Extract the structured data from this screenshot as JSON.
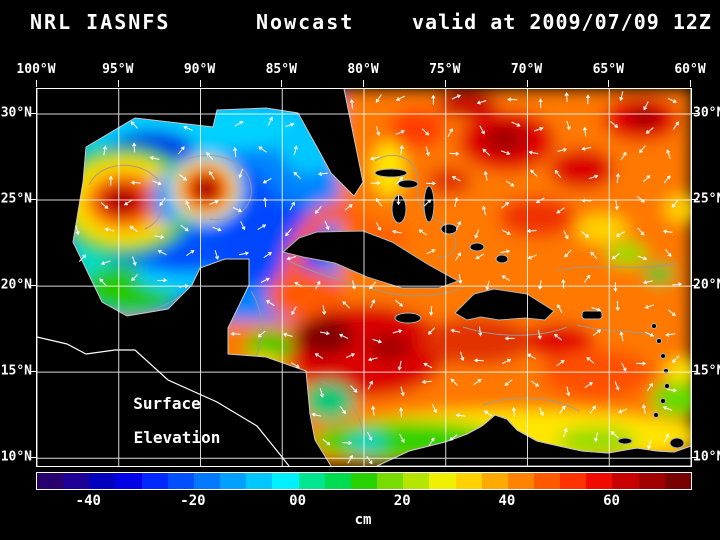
{
  "header": {
    "left": "NRL IASNFS",
    "center": "Nowcast",
    "right": "valid at 2009/07/09 12Z"
  },
  "axes": {
    "top": {
      "labels": [
        "100°W",
        "95°W",
        "90°W",
        "85°W",
        "80°W",
        "75°W",
        "70°W",
        "65°W",
        "60°W"
      ],
      "values": [
        100,
        95,
        90,
        85,
        80,
        75,
        70,
        65,
        60
      ]
    },
    "left": {
      "labels": [
        "30°N",
        "25°N",
        "20°N",
        "15°N",
        "10°N"
      ],
      "values": [
        30,
        25,
        20,
        15,
        10
      ]
    },
    "right": {
      "labels": [
        "30°N",
        "25°N",
        "20°N",
        "15°N",
        "10°N"
      ],
      "values": [
        30,
        25,
        20,
        15,
        10
      ]
    }
  },
  "map": {
    "annotation": {
      "line1": "Surface",
      "line2": "Elevation"
    }
  },
  "colorbar": {
    "unit": "cm",
    "range": [
      -50,
      75
    ],
    "ticks": [
      {
        "label": "-40",
        "value": -40
      },
      {
        "label": "-20",
        "value": -20
      },
      {
        "label": "00",
        "value": 0
      },
      {
        "label": "20",
        "value": 20
      },
      {
        "label": "40",
        "value": 40
      },
      {
        "label": "60",
        "value": 60
      }
    ],
    "colors": [
      "#28006e",
      "#1e0096",
      "#0000be",
      "#0000e6",
      "#0028ff",
      "#0050ff",
      "#0078ff",
      "#00a0ff",
      "#00c8ff",
      "#00f0ff",
      "#00e690",
      "#00dc50",
      "#28d200",
      "#78dc00",
      "#b4e600",
      "#f0f000",
      "#ffd200",
      "#ffaa00",
      "#ff8200",
      "#ff5a00",
      "#ff3200",
      "#f00a00",
      "#c80000",
      "#a00000",
      "#780000"
    ]
  }
}
